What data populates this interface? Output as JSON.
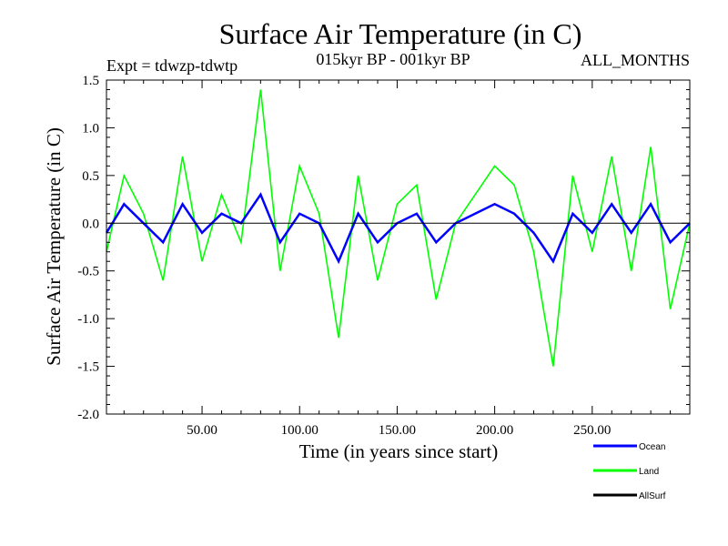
{
  "chart_data": {
    "type": "line",
    "title": "Surface Air Temperature (in C)",
    "subtitle_left": "Expt = tdwzp-tdwtp",
    "subtitle_center": "015kyr BP - 001kyr BP",
    "subtitle_right": "ALL_MONTHS",
    "xlabel": "Time (in years since start)",
    "ylabel": "Surface Air Temperature (in C)",
    "xlim": [
      1,
      300
    ],
    "ylim": [
      -2.0,
      1.5
    ],
    "x_ticks": [
      50,
      100,
      150,
      200,
      250
    ],
    "x_tick_labels": [
      "50.00",
      "100.00",
      "150.00",
      "200.00",
      "250.00"
    ],
    "y_ticks": [
      -2.0,
      -1.5,
      -1.0,
      -0.5,
      0.0,
      0.5,
      1.0,
      1.5
    ],
    "y_tick_labels": [
      "-2.0",
      "-1.5",
      "-1.0",
      "-0.5",
      "0.0",
      "0.5",
      "1.0",
      "1.5"
    ],
    "zero_line": true,
    "grid": false,
    "legend_position": "bottom-right",
    "series": [
      {
        "name": "Land",
        "color": "#00ff00",
        "x": [
          1,
          10,
          20,
          30,
          40,
          50,
          60,
          70,
          80,
          90,
          100,
          110,
          120,
          130,
          140,
          150,
          160,
          170,
          180,
          190,
          200,
          210,
          220,
          230,
          240,
          250,
          260,
          270,
          280,
          290,
          300
        ],
        "values": [
          -0.3,
          0.5,
          0.1,
          -0.6,
          0.7,
          -0.4,
          0.3,
          -0.2,
          1.4,
          -0.5,
          0.6,
          0.1,
          -1.2,
          0.5,
          -0.6,
          0.2,
          0.4,
          -0.8,
          0.0,
          0.3,
          0.6,
          0.4,
          -0.3,
          -1.5,
          0.5,
          -0.3,
          0.7,
          -0.5,
          0.8,
          -0.9,
          0.0
        ]
      },
      {
        "name": "Ocean",
        "color": "#0000ff",
        "x": [
          1,
          10,
          20,
          30,
          40,
          50,
          60,
          70,
          80,
          90,
          100,
          110,
          120,
          130,
          140,
          150,
          160,
          170,
          180,
          190,
          200,
          210,
          220,
          230,
          240,
          250,
          260,
          270,
          280,
          290,
          300
        ],
        "values": [
          -0.1,
          0.2,
          0.0,
          -0.2,
          0.2,
          -0.1,
          0.1,
          0.0,
          0.3,
          -0.2,
          0.1,
          0.0,
          -0.4,
          0.1,
          -0.2,
          0.0,
          0.1,
          -0.2,
          0.0,
          0.1,
          0.2,
          0.1,
          -0.1,
          -0.4,
          0.1,
          -0.1,
          0.2,
          -0.1,
          0.2,
          -0.2,
          0.0
        ]
      },
      {
        "name": "AllSurf",
        "color": "#000000",
        "x": [],
        "values": []
      }
    ]
  }
}
